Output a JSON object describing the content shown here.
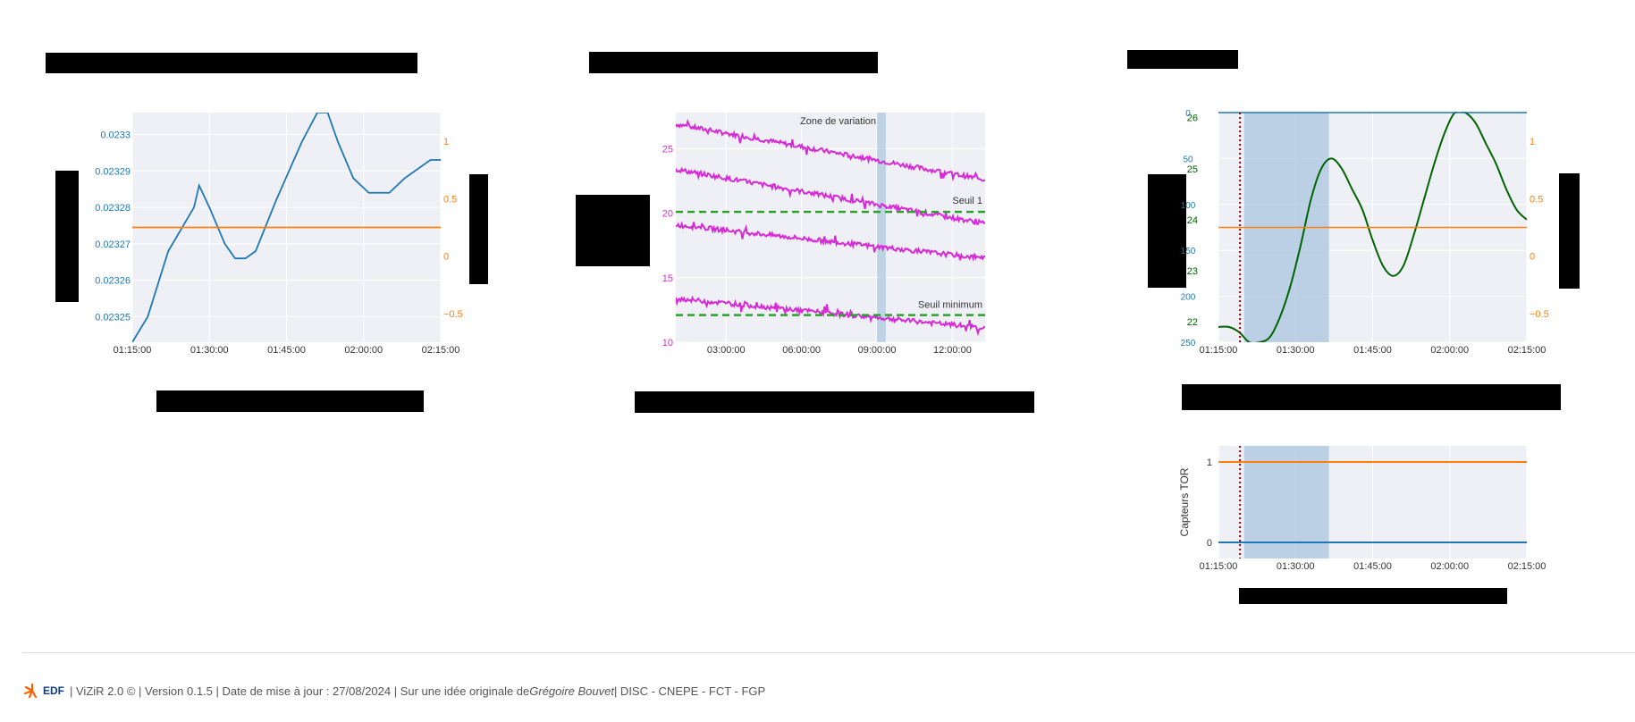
{
  "footer": {
    "logo_text": "EDF",
    "pre": "| ViZiR 2.0 © | Version 0.1.5 | Date de mise à jour : 27/08/2024 | Sur une idée originale de ",
    "author": "Grégoire Bouvet",
    "post": " | DISC - CNEPE - FCT - FGP"
  },
  "colors": {
    "blue": "#1f77b4",
    "orange": "#ff7f0e",
    "magenta": "#d62ad6",
    "green_threshold": "#2ca02c",
    "dark_green": "#006400",
    "red_marker": "#8b0000",
    "plot_bg": "#eef0f5",
    "band": "#a9c6df"
  },
  "chart_data": [
    {
      "id": "chart1",
      "type": "line",
      "xlabel": "",
      "ylabel": "",
      "y2label": "",
      "x_ticks": [
        "01:15:00",
        "01:30:00",
        "01:45:00",
        "02:00:00",
        "02:15:00"
      ],
      "xlim_minutes": [
        75,
        135
      ],
      "y_ticks": [
        "0.02325",
        "0.02326",
        "0.02327",
        "0.02328",
        "0.02329",
        "0.0233"
      ],
      "ylim": [
        0.023243,
        0.023306
      ],
      "y2_ticks": [
        "−0.5",
        "0",
        "0.5",
        "1"
      ],
      "y2lim": [
        -0.75,
        1.25
      ],
      "series": [
        {
          "axis": "y",
          "color": "blue",
          "step": true,
          "x": [
            75,
            78,
            82,
            87,
            88,
            90,
            93,
            95,
            97,
            99,
            103,
            108,
            111,
            113,
            115,
            118,
            121,
            123,
            125,
            128,
            130,
            133,
            135
          ],
          "y": [
            0.023243,
            0.02325,
            0.023268,
            0.02328,
            0.023286,
            0.02328,
            0.02327,
            0.023266,
            0.023266,
            0.023268,
            0.023282,
            0.023298,
            0.023306,
            0.023306,
            0.023298,
            0.023288,
            0.023284,
            0.023284,
            0.023284,
            0.023288,
            0.02329,
            0.023293,
            0.023293
          ]
        },
        {
          "axis": "y2",
          "color": "orange",
          "x": [
            75,
            135
          ],
          "y": [
            0.25,
            0.25
          ]
        }
      ]
    },
    {
      "id": "chart2",
      "type": "line",
      "x_ticks": [
        "03:00:00",
        "06:00:00",
        "09:00:00",
        "12:00:00"
      ],
      "x_tick_hours": [
        3,
        6,
        9,
        12
      ],
      "xlim_hours": [
        1,
        13.3
      ],
      "y_ticks": [
        "10",
        "15",
        "20",
        "25"
      ],
      "ylim": [
        10,
        27.8
      ],
      "variation_band_hours": [
        9.0,
        9.35
      ],
      "annotations": [
        "Zone de variation",
        "Seuil 1",
        "Seuil minimum"
      ],
      "thresholds": [
        {
          "name": "Seuil 1",
          "y": 20.1
        },
        {
          "name": "Seuil minimum",
          "y": 12.1
        }
      ],
      "series": [
        {
          "name": "",
          "color": "magenta",
          "x": [
            1,
            13.3
          ],
          "y": [
            26.9,
            22.6
          ]
        },
        {
          "name": "",
          "color": "magenta",
          "x": [
            1,
            13.3
          ],
          "y": [
            23.4,
            19.2
          ]
        },
        {
          "name": "",
          "color": "magenta",
          "x": [
            1,
            13.3
          ],
          "y": [
            19.1,
            16.5
          ]
        },
        {
          "name": "",
          "color": "magenta",
          "x": [
            1,
            13.3
          ],
          "y": [
            13.4,
            11.1
          ]
        }
      ]
    },
    {
      "id": "chart3",
      "type": "line",
      "x_ticks": [
        "01:15:00",
        "01:30:00",
        "01:45:00",
        "02:00:00",
        "02:15:00"
      ],
      "xlim_minutes": [
        75,
        135
      ],
      "y_left_outer_ticks": [
        "22",
        "23",
        "24",
        "25",
        "26"
      ],
      "y_left_outer_lim": [
        21.6,
        26.1
      ],
      "y_left_inner_ticks": [
        "0",
        "50",
        "100",
        "150",
        "200",
        "250"
      ],
      "y_left_inner_lim": [
        250,
        0
      ],
      "y_right_ticks": [
        "−0.5",
        "0",
        "0.5",
        "1"
      ],
      "y_right_lim": [
        -0.75,
        1.25
      ],
      "marker_minute": 79.2,
      "band_minutes": [
        80,
        96.5
      ],
      "series": [
        {
          "axis": "outer",
          "color": "dark_green",
          "x": [
            75,
            77,
            79,
            81,
            83,
            85,
            87,
            89,
            91,
            93,
            95,
            97,
            99,
            101,
            103,
            105,
            107,
            109,
            111,
            113,
            115,
            117,
            119,
            121,
            123,
            125,
            127,
            129,
            131,
            133,
            135
          ],
          "y": [
            21.9,
            21.9,
            21.8,
            21.6,
            21.6,
            21.7,
            22.1,
            22.7,
            23.5,
            24.4,
            25.0,
            25.2,
            25.0,
            24.6,
            24.2,
            23.6,
            23.1,
            22.9,
            23.1,
            23.7,
            24.4,
            25.1,
            25.7,
            26.1,
            26.1,
            25.9,
            25.5,
            25.1,
            24.6,
            24.2,
            24.0
          ]
        },
        {
          "axis": "right",
          "color": "orange",
          "x": [
            75,
            135
          ],
          "y": [
            0.25,
            0.25
          ]
        },
        {
          "axis": "inner",
          "color": "blue",
          "x": [
            75,
            135
          ],
          "y": [
            0,
            0
          ]
        }
      ]
    },
    {
      "id": "chart4",
      "type": "line",
      "ylabel": "Capteurs TOR",
      "x_ticks": [
        "01:15:00",
        "01:30:00",
        "01:45:00",
        "02:00:00",
        "02:15:00"
      ],
      "xlim_minutes": [
        75,
        135
      ],
      "y_ticks": [
        "0",
        "1"
      ],
      "ylim": [
        -0.2,
        1.2
      ],
      "marker_minute": 79.2,
      "band_minutes": [
        80,
        96.5
      ],
      "series": [
        {
          "color": "orange",
          "x": [
            75,
            135
          ],
          "y": [
            1,
            1
          ]
        },
        {
          "color": "blue",
          "x": [
            75,
            135
          ],
          "y": [
            0,
            0
          ]
        }
      ]
    }
  ]
}
